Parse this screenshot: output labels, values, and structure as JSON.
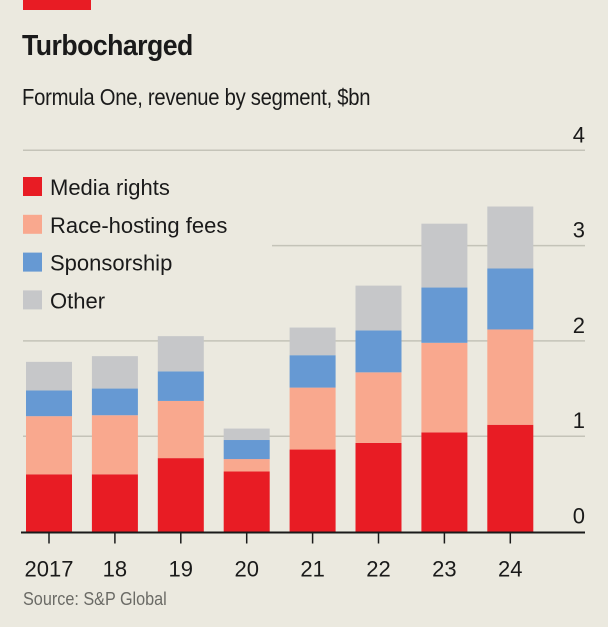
{
  "header": {
    "title": "Turbocharged",
    "subtitle": "Formula One, revenue by segment, $bn"
  },
  "footer": {
    "source": "Source: S&P Global"
  },
  "colors": {
    "background": "#ebe9df",
    "accent": "#e81c24",
    "media_rights": "#e81c24",
    "race_hosting_fees": "#f9a88e",
    "sponsorship": "#6699d3",
    "other": "#c6c7c9",
    "gridline": "#c4c3b8",
    "axis": "#1a1a1a"
  },
  "chart_data": {
    "type": "bar",
    "stacked": true,
    "title": "Turbocharged",
    "subtitle": "Formula One, revenue by segment, $bn",
    "xlabel": "",
    "ylabel": "",
    "categories": [
      "2017",
      "18",
      "19",
      "20",
      "21",
      "22",
      "23",
      "24"
    ],
    "series": [
      {
        "name": "Media rights",
        "color_key": "media_rights",
        "values": [
          0.6,
          0.6,
          0.77,
          0.63,
          0.86,
          0.93,
          1.04,
          1.12
        ]
      },
      {
        "name": "Race-hosting fees",
        "color_key": "race_hosting_fees",
        "values": [
          0.61,
          0.62,
          0.6,
          0.13,
          0.65,
          0.74,
          0.94,
          1.0
        ]
      },
      {
        "name": "Sponsorship",
        "color_key": "sponsorship",
        "values": [
          0.27,
          0.28,
          0.31,
          0.2,
          0.34,
          0.44,
          0.58,
          0.64
        ]
      },
      {
        "name": "Other",
        "color_key": "other",
        "values": [
          0.3,
          0.34,
          0.37,
          0.12,
          0.29,
          0.47,
          0.67,
          0.65
        ]
      }
    ],
    "totals": [
      1.78,
      1.84,
      2.04,
      1.08,
      2.14,
      2.58,
      3.23,
      3.41
    ],
    "ylim": [
      0,
      4
    ],
    "yticks": [
      0,
      1,
      2,
      3,
      4
    ],
    "ytick_labels": [
      "0",
      "1",
      "2",
      "3",
      "4"
    ],
    "y_axis_side": "right",
    "grid": true,
    "legend": {
      "placement": "top-left",
      "entries": [
        "Media rights",
        "Race-hosting fees",
        "Sponsorship",
        "Other"
      ]
    },
    "source": "Source: S&P Global"
  }
}
